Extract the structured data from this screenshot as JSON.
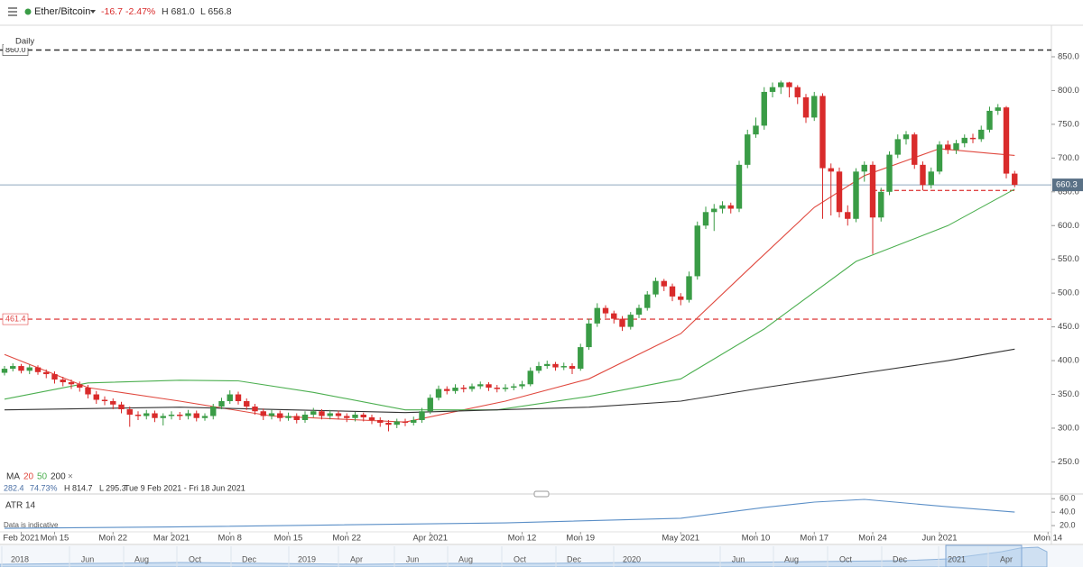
{
  "header": {
    "symbol": "Ether/Bitcoin",
    "change": "-16.7",
    "change_pct": "-2.47%",
    "high": "H 681.0",
    "low": "L 656.8",
    "interval": "Daily",
    "note": "Data is indicative"
  },
  "range_stats": {
    "last": "282.4",
    "pct": "74.73%",
    "high": "H 814.7",
    "low": "L 295.3",
    "range": "Tue 9 Feb 2021 - Fri 18 Jun 2021"
  },
  "chart_data": {
    "type": "candlestick",
    "up_color": "#3a9c46",
    "down_color": "#d92b2b",
    "open": [
      382,
      388,
      392,
      385,
      390,
      383,
      380,
      372,
      368,
      365,
      360,
      350,
      342,
      340,
      335,
      328,
      320,
      318,
      322,
      315,
      318,
      320,
      318,
      322,
      315,
      318,
      332,
      340,
      350,
      340,
      332,
      325,
      318,
      322,
      315,
      318,
      312,
      320,
      325,
      318,
      322,
      318,
      315,
      320,
      316,
      312,
      308,
      305,
      310,
      308,
      312,
      325,
      345,
      358,
      355,
      360,
      358,
      362,
      365,
      360,
      358,
      360,
      362,
      365,
      385,
      392,
      395,
      390,
      392,
      388,
      420,
      455,
      478,
      470,
      462,
      450,
      468,
      478,
      498,
      518,
      510,
      495,
      490,
      525,
      600,
      620,
      625,
      630,
      625,
      690,
      735,
      748,
      798,
      805,
      812,
      805,
      790,
      760,
      792,
      685,
      680,
      620,
      610,
      680,
      690,
      612,
      650,
      705,
      728,
      735,
      690,
      660,
      680,
      720,
      712,
      722,
      730,
      728,
      742,
      770,
      775,
      677
    ],
    "high": [
      392,
      396,
      395,
      394,
      393,
      387,
      384,
      376,
      372,
      369,
      364,
      355,
      347,
      344,
      339,
      332,
      325,
      327,
      326,
      322,
      325,
      324,
      327,
      326,
      322,
      336,
      345,
      356,
      354,
      344,
      336,
      329,
      327,
      326,
      323,
      322,
      325,
      330,
      328,
      327,
      326,
      322,
      324,
      323,
      320,
      316,
      312,
      314,
      314,
      317,
      330,
      350,
      363,
      362,
      365,
      364,
      366,
      369,
      368,
      364,
      365,
      366,
      370,
      390,
      398,
      400,
      398,
      397,
      396,
      425,
      462,
      485,
      482,
      474,
      466,
      472,
      483,
      503,
      523,
      521,
      514,
      500,
      532,
      606,
      628,
      632,
      636,
      634,
      696,
      742,
      760,
      805,
      812,
      814.7,
      813,
      808,
      795,
      798,
      796,
      692,
      686,
      630,
      685,
      695,
      695,
      656,
      710,
      735,
      740,
      738,
      695,
      686,
      725,
      726,
      727,
      735,
      736,
      748,
      776,
      780,
      777,
      681.0
    ],
    "low": [
      378,
      384,
      381,
      380,
      379,
      374,
      366,
      362,
      358,
      354,
      344,
      336,
      334,
      328,
      322,
      302,
      312,
      313,
      309,
      304,
      313,
      312,
      313,
      310,
      311,
      313,
      328,
      336,
      335,
      327,
      320,
      312,
      313,
      310,
      311,
      307,
      308,
      316,
      313,
      313,
      313,
      309,
      310,
      310,
      306,
      302,
      295.3,
      300,
      303,
      304,
      308,
      321,
      341,
      350,
      351,
      353,
      354,
      358,
      355,
      353,
      354,
      356,
      358,
      362,
      381,
      388,
      385,
      386,
      380,
      385,
      416,
      450,
      463,
      455,
      444,
      446,
      463,
      474,
      494,
      503,
      488,
      482,
      486,
      520,
      595,
      592,
      618,
      618,
      620,
      685,
      730,
      742,
      790,
      795,
      790,
      780,
      752,
      755,
      610,
      615,
      612,
      600,
      605,
      665,
      558,
      606,
      645,
      700,
      720,
      684,
      652,
      655,
      676,
      706,
      706,
      716,
      722,
      724,
      738,
      764,
      670,
      656.8
    ],
    "close": [
      388,
      392,
      385,
      390,
      383,
      380,
      372,
      368,
      365,
      360,
      350,
      342,
      340,
      335,
      328,
      320,
      318,
      322,
      315,
      318,
      320,
      318,
      322,
      315,
      318,
      332,
      340,
      350,
      340,
      332,
      325,
      318,
      322,
      315,
      318,
      312,
      320,
      325,
      318,
      322,
      318,
      315,
      320,
      316,
      312,
      308,
      305,
      310,
      308,
      312,
      325,
      345,
      358,
      355,
      360,
      358,
      362,
      365,
      360,
      358,
      360,
      362,
      365,
      385,
      392,
      395,
      390,
      392,
      388,
      420,
      455,
      478,
      470,
      462,
      450,
      468,
      478,
      498,
      518,
      510,
      495,
      490,
      525,
      600,
      620,
      625,
      630,
      625,
      690,
      735,
      748,
      798,
      805,
      812,
      805,
      790,
      760,
      792,
      685,
      680,
      620,
      610,
      680,
      690,
      612,
      650,
      705,
      728,
      735,
      690,
      660,
      680,
      720,
      712,
      722,
      730,
      728,
      742,
      770,
      775,
      677,
      660.3
    ],
    "ylim": [
      202.5,
      880.7
    ],
    "yticks": [
      {
        "value": 850,
        "label": "850.0"
      },
      {
        "value": 800,
        "label": "800.0"
      },
      {
        "value": 750,
        "label": "750.0"
      },
      {
        "value": 700,
        "label": "700.0"
      },
      {
        "value": 650,
        "label": "650.0"
      },
      {
        "value": 600,
        "label": "600.0"
      },
      {
        "value": 550,
        "label": "550.0"
      },
      {
        "value": 500,
        "label": "500.0"
      },
      {
        "value": 450,
        "label": "450.0"
      },
      {
        "value": 400,
        "label": "400.0"
      },
      {
        "value": 350,
        "label": "350.0"
      },
      {
        "value": 300,
        "label": "300.0"
      },
      {
        "value": 250,
        "label": "250.0"
      }
    ],
    "xticks": [
      {
        "value": 2,
        "label": "Feb 2021"
      },
      {
        "value": 6,
        "label": "Mon 15"
      },
      {
        "value": 13,
        "label": "Mon 22"
      },
      {
        "value": 20,
        "label": "Mar 2021"
      },
      {
        "value": 27,
        "label": "Mon 8"
      },
      {
        "value": 34,
        "label": "Mon 15"
      },
      {
        "value": 41,
        "label": "Mon 22"
      },
      {
        "value": 51,
        "label": "Apr 2021"
      },
      {
        "value": 62,
        "label": "Mon 12"
      },
      {
        "value": 69,
        "label": "Mon 19"
      },
      {
        "value": 81,
        "label": "May 2021"
      },
      {
        "value": 90,
        "label": "Mon 10"
      },
      {
        "value": 97,
        "label": "Mon 17"
      },
      {
        "value": 104,
        "label": "Mon 24"
      },
      {
        "value": 112,
        "label": "Jun 2021"
      },
      {
        "value": 125,
        "label": "Mon 14"
      }
    ],
    "ma_label": "MA",
    "ma": [
      {
        "name": "20",
        "color": "#e0493f",
        "x": [
          0,
          10,
          21,
          32,
          48,
          60,
          70,
          81,
          89,
          97,
          103,
          112,
          118,
          121
        ],
        "values": [
          409,
          360,
          340,
          318,
          309,
          340,
          373,
          440,
          534,
          627,
          674,
          714,
          707,
          704
        ]
      },
      {
        "name": "50",
        "color": "#4caf50",
        "x": [
          0,
          10,
          21,
          28,
          37,
          48,
          59,
          70,
          81,
          91,
          102,
          113,
          121
        ],
        "values": [
          343,
          367,
          371,
          370,
          353,
          327,
          327,
          347,
          373,
          447,
          547,
          600,
          654
        ]
      },
      {
        "name": "200",
        "color": "#333333",
        "x": [
          0,
          21,
          48,
          70,
          81,
          91,
          102,
          113,
          121
        ],
        "values": [
          327,
          331,
          323,
          331,
          340,
          360,
          380,
          400,
          417
        ]
      }
    ],
    "ma_close": "×",
    "hlines": [
      {
        "value": 860,
        "label": "860.0",
        "color": "#333333"
      },
      {
        "value": 461.4,
        "label": "461.4",
        "color": "#e04848"
      }
    ],
    "support": {
      "value": 652,
      "x": [
        104,
        121
      ],
      "color": "#e04848"
    },
    "last_line_color": "#8fa9bf"
  },
  "atr": {
    "label": "ATR",
    "period": "14",
    "color": "#5b8fc7",
    "x": [
      0,
      20,
      40,
      60,
      81,
      91,
      97,
      103,
      113,
      121
    ],
    "values": [
      16,
      18,
      21,
      24,
      31,
      47,
      55,
      59,
      48,
      40
    ],
    "ylim": [
      0,
      67
    ],
    "yticks": [
      {
        "value": 60,
        "label": "60.0"
      },
      {
        "value": 40,
        "label": "40.0"
      },
      {
        "value": 20,
        "label": "20.0"
      }
    ]
  },
  "navigator": {
    "labels": [
      "2018",
      "Jun",
      "Aug",
      "Oct",
      "Dec",
      "2019",
      "Apr",
      "Jun",
      "Aug",
      "Oct",
      "Dec",
      "2020",
      "Jun",
      "Aug",
      "Oct",
      "Dec",
      "2021",
      "Apr"
    ]
  }
}
